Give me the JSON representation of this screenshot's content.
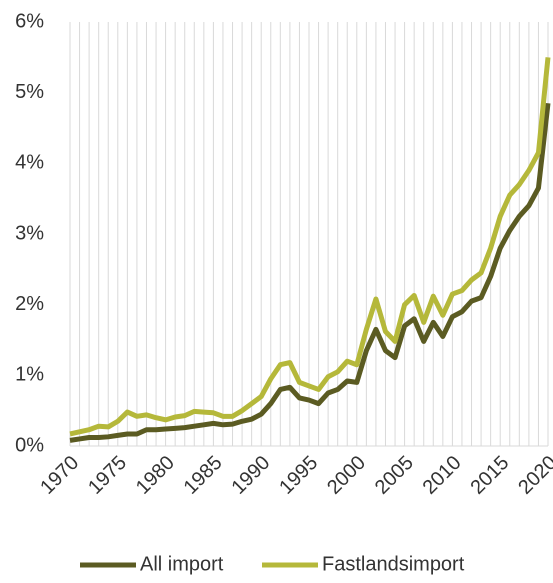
{
  "chart_data": {
    "type": "line",
    "x": [
      1970,
      1971,
      1972,
      1973,
      1974,
      1975,
      1976,
      1977,
      1978,
      1979,
      1980,
      1981,
      1982,
      1983,
      1984,
      1985,
      1986,
      1987,
      1988,
      1989,
      1990,
      1991,
      1992,
      1993,
      1994,
      1995,
      1996,
      1997,
      1998,
      1999,
      2000,
      2001,
      2002,
      2003,
      2004,
      2005,
      2006,
      2007,
      2008,
      2009,
      2010,
      2011,
      2012,
      2013,
      2014,
      2015,
      2016,
      2017,
      2018,
      2019,
      2020
    ],
    "xlim": [
      1970,
      2020
    ],
    "xticks": [
      1970,
      1975,
      1980,
      1985,
      1990,
      1995,
      2000,
      2005,
      2010,
      2015,
      2020
    ],
    "ylim": [
      0,
      6
    ],
    "yticks": [
      {
        "value": 0,
        "label": "0%"
      },
      {
        "value": 1,
        "label": "1%"
      },
      {
        "value": 2,
        "label": "2%"
      },
      {
        "value": 3,
        "label": "3%"
      },
      {
        "value": 4,
        "label": "4%"
      },
      {
        "value": 5,
        "label": "5%"
      },
      {
        "value": 6,
        "label": "6%"
      }
    ],
    "grid": "x",
    "legend": "bottom",
    "series": [
      {
        "name": "All import",
        "color": "#5b5b22",
        "values": [
          0.08,
          0.1,
          0.12,
          0.12,
          0.13,
          0.15,
          0.17,
          0.17,
          0.23,
          0.23,
          0.24,
          0.25,
          0.26,
          0.28,
          0.3,
          0.32,
          0.3,
          0.31,
          0.35,
          0.38,
          0.45,
          0.6,
          0.8,
          0.83,
          0.68,
          0.65,
          0.6,
          0.75,
          0.8,
          0.92,
          0.9,
          1.35,
          1.65,
          1.35,
          1.25,
          1.7,
          1.8,
          1.48,
          1.75,
          1.55,
          1.83,
          1.9,
          2.05,
          2.1,
          2.4,
          2.8,
          3.05,
          3.25,
          3.4,
          3.65,
          4.85
        ]
      },
      {
        "name": "Fastlandsimport",
        "color": "#b5b83a",
        "values": [
          0.17,
          0.2,
          0.23,
          0.28,
          0.27,
          0.35,
          0.48,
          0.42,
          0.44,
          0.4,
          0.37,
          0.41,
          0.43,
          0.49,
          0.48,
          0.47,
          0.42,
          0.42,
          0.5,
          0.6,
          0.7,
          0.95,
          1.15,
          1.18,
          0.9,
          0.85,
          0.8,
          0.98,
          1.05,
          1.2,
          1.15,
          1.65,
          2.08,
          1.62,
          1.48,
          2.0,
          2.13,
          1.75,
          2.12,
          1.85,
          2.15,
          2.2,
          2.35,
          2.45,
          2.8,
          3.25,
          3.55,
          3.7,
          3.9,
          4.15,
          5.5
        ]
      }
    ]
  }
}
